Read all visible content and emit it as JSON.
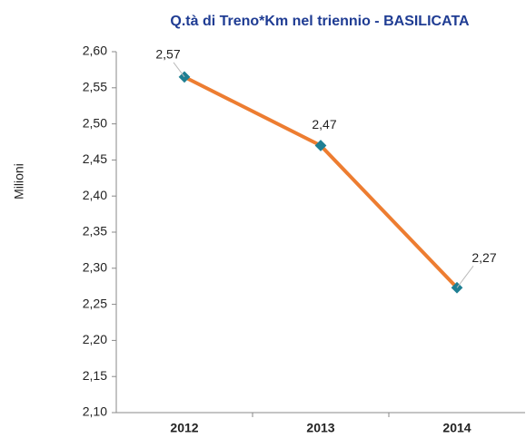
{
  "chart_data": {
    "type": "line",
    "title": "Q.tà di Treno*Km nel triennio - BASILICATA",
    "y_label": "Milioni",
    "categories": [
      "2012",
      "2013",
      "2014"
    ],
    "series": [
      {
        "name": "Treno*Km",
        "color": "#ed7d31",
        "marker_color": "#1f7f93",
        "values": [
          2.565,
          2.47,
          2.273
        ],
        "value_labels": [
          "2,57",
          "2,47",
          "2,27"
        ]
      }
    ],
    "ylim": [
      2.1,
      2.6
    ],
    "yticks": [
      {
        "value": 2.1,
        "label": "2,10"
      },
      {
        "value": 2.15,
        "label": "2,15"
      },
      {
        "value": 2.2,
        "label": "2,20"
      },
      {
        "value": 2.25,
        "label": "2,25"
      },
      {
        "value": 2.3,
        "label": "2,30"
      },
      {
        "value": 2.35,
        "label": "2,35"
      },
      {
        "value": 2.4,
        "label": "2,40"
      },
      {
        "value": 2.45,
        "label": "2,45"
      },
      {
        "value": 2.5,
        "label": "2,50"
      },
      {
        "value": 2.55,
        "label": "2,55"
      },
      {
        "value": 2.6,
        "label": "2,60"
      }
    ],
    "grid": false
  }
}
